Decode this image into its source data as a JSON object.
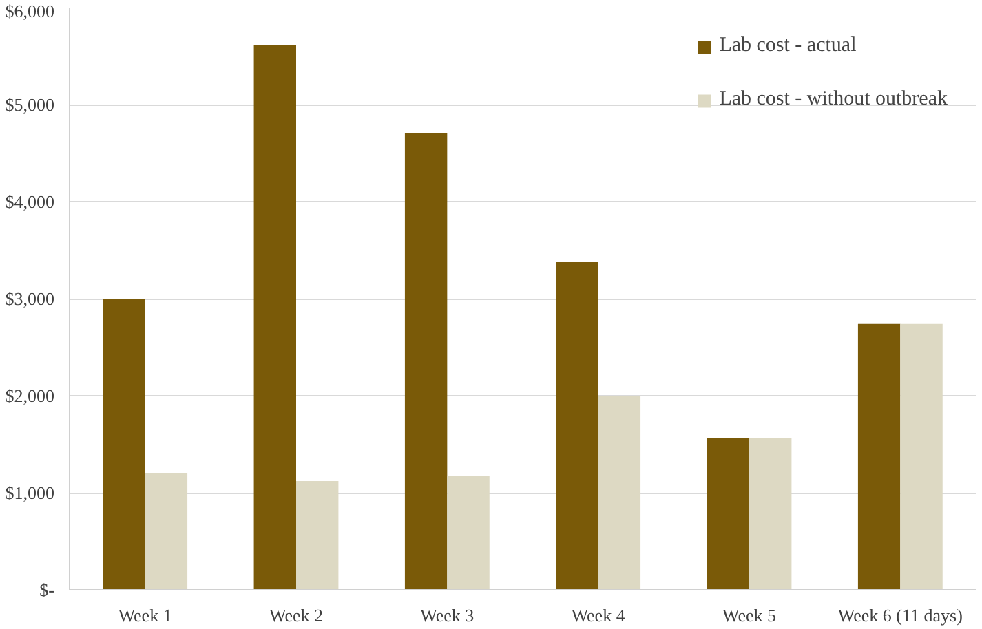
{
  "chart_data": {
    "type": "bar",
    "categories": [
      "Week 1",
      "Week 2",
      "Week 3",
      "Week 4",
      "Week 5",
      "Week 6 (11 days)"
    ],
    "series": [
      {
        "name": "Lab cost - actual",
        "color": "#7a5a08",
        "values": [
          3000,
          5610,
          4710,
          3380,
          1560,
          2740
        ]
      },
      {
        "name": "Lab cost - without outbreak",
        "color": "#ddd9c3",
        "values": [
          1200,
          1120,
          1170,
          2000,
          1560,
          2740
        ]
      }
    ],
    "ylim": [
      0,
      6000
    ],
    "yticks": [
      {
        "value": 0,
        "label": "$-"
      },
      {
        "value": 1000,
        "label": "$1,000"
      },
      {
        "value": 2000,
        "label": "$2,000"
      },
      {
        "value": 3000,
        "label": "$3,000"
      },
      {
        "value": 4000,
        "label": "$4,000"
      },
      {
        "value": 5000,
        "label": "$5,000"
      },
      {
        "value": 6000,
        "label": "$6,000"
      }
    ],
    "grid": "y",
    "legend": "top right"
  }
}
